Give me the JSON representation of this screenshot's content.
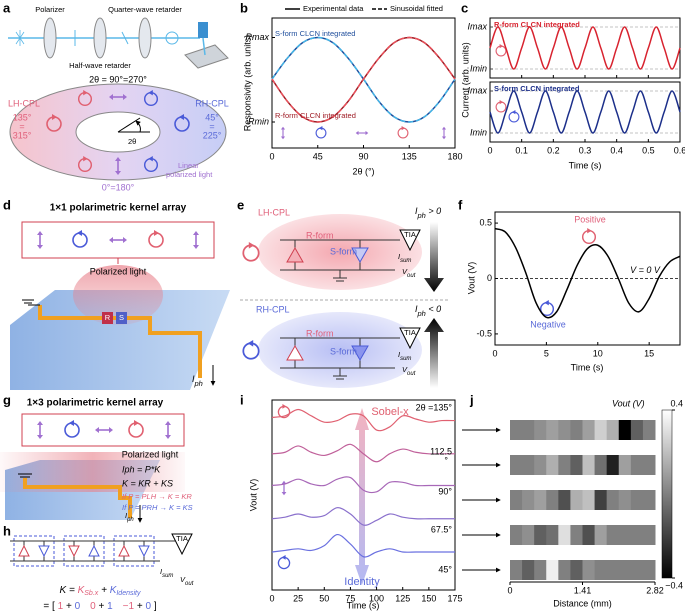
{
  "a": {
    "letter": "a",
    "polarizer": "Polarizer",
    "quarter_wave": "Quarter-wave retarder",
    "half_wave": "Half-wave retarder",
    "top_angle": "2θ = 90°=270°",
    "lh": "LH-CPL",
    "rh": "RH-CPL",
    "left_angles": [
      "135°",
      "=",
      "315°"
    ],
    "right_angles": [
      "45°",
      "=",
      "225°"
    ],
    "bottom_angle": "0°=180°",
    "linear": [
      "Linear",
      "polarized light"
    ],
    "two_theta": "2θ"
  },
  "b": {
    "type": "line",
    "letter": "b",
    "legend": [
      "Experimental data",
      "Sinusoidal fitted"
    ],
    "ylabel": "Responsivity (arb. units)",
    "xlabel": "2θ (°)",
    "x": [
      0,
      15,
      30,
      45,
      60,
      75,
      90,
      105,
      120,
      135,
      150,
      165,
      180
    ],
    "xlim": [
      0,
      180
    ],
    "xticks": [
      0,
      45,
      90,
      135,
      180
    ],
    "ylim": [
      0,
      1
    ],
    "yticks": [
      {
        "value": 0.85,
        "label": "Rmax"
      },
      {
        "value": 0.2,
        "label": "Rmin"
      }
    ],
    "series": [
      {
        "name": "S-form CLCN integrated",
        "color": "#1f4e9c",
        "fit_color": "#45b4e6",
        "values": [
          0.53,
          0.69,
          0.81,
          0.85,
          0.81,
          0.69,
          0.53,
          0.36,
          0.24,
          0.2,
          0.24,
          0.36,
          0.53
        ]
      },
      {
        "name": "R-form CLCN integrated",
        "color": "#9e1b24",
        "fit_color": "#e8505a",
        "values": [
          0.53,
          0.36,
          0.24,
          0.2,
          0.24,
          0.36,
          0.53,
          0.69,
          0.81,
          0.85,
          0.81,
          0.69,
          0.53
        ]
      }
    ]
  },
  "c": {
    "type": "line",
    "letter": "c",
    "ylabel": "Current (arb. units)",
    "xlabel": "Time (s)",
    "x": [
      0,
      0.025,
      0.05,
      0.075,
      0.1,
      0.125,
      0.15,
      0.175,
      0.2,
      0.225,
      0.25,
      0.275,
      0.3,
      0.325,
      0.35,
      0.375,
      0.4,
      0.425,
      0.45,
      0.475,
      0.5,
      0.525,
      0.55,
      0.575,
      0.6
    ],
    "xlim": [
      0,
      0.6
    ],
    "xticks": [
      0,
      0.1,
      0.2,
      0.3,
      0.4,
      0.5,
      0.6
    ],
    "subplots": [
      {
        "title": "R-form CLCN integrated",
        "color": "#d8232f",
        "ylim": [
          0,
          1
        ],
        "yticks": [
          {
            "value": 0.85,
            "label": "Imax"
          },
          {
            "value": 0.15,
            "label": "Imin"
          }
        ],
        "values": [
          0.5,
          0.85,
          0.5,
          0.15,
          0.5,
          0.85,
          0.5,
          0.15,
          0.5,
          0.85,
          0.5,
          0.15,
          0.5,
          0.85,
          0.5,
          0.15,
          0.5,
          0.85,
          0.5,
          0.15,
          0.5,
          0.85,
          0.5,
          0.15,
          0.5
        ]
      },
      {
        "title": "S-form CLCN integrated",
        "color": "#1c2f8a",
        "ylim": [
          0,
          1
        ],
        "yticks": [
          {
            "value": 0.85,
            "label": "Imax"
          },
          {
            "value": 0.15,
            "label": "Imin"
          }
        ],
        "values": [
          0.5,
          0.15,
          0.5,
          0.85,
          0.5,
          0.15,
          0.5,
          0.85,
          0.5,
          0.15,
          0.5,
          0.85,
          0.5,
          0.15,
          0.5,
          0.85,
          0.5,
          0.15,
          0.5,
          0.85,
          0.5,
          0.15,
          0.5,
          0.85,
          0.5
        ]
      }
    ]
  },
  "d": {
    "letter": "d",
    "title": "1×1 polarimetric kernel array",
    "polarized": "Polarized light",
    "r": "R",
    "s": "S",
    "iph": {
      "main": "I",
      "sub": "ph"
    }
  },
  "e": {
    "letter": "e",
    "top": {
      "label": "LH-CPL",
      "r": "R-form",
      "s": "S-form",
      "cond": {
        "main": "I",
        "sub": "ph",
        "rest": " > 0"
      },
      "tia": "TIA",
      "isum": {
        "main": "I",
        "sub": "sum"
      },
      "vout": {
        "main": "V",
        "sub": "out"
      }
    },
    "bottom": {
      "label": "RH-CPL",
      "r": "R-form",
      "s": "S-form",
      "cond": {
        "main": "I",
        "sub": "ph",
        "rest": " < 0"
      },
      "tia": "TIA",
      "isum": {
        "main": "I",
        "sub": "sum"
      },
      "vout": {
        "main": "V",
        "sub": "out"
      }
    }
  },
  "f": {
    "type": "line",
    "letter": "f",
    "ylabel": "Vout (V)",
    "xlabel": "Time (s)",
    "positive": "Positive",
    "negative": "Negative",
    "zero": "V = 0 V",
    "x": [
      0,
      1,
      2,
      3,
      4,
      5,
      6,
      7,
      8,
      9,
      10,
      11,
      12,
      13,
      14,
      15,
      16,
      17,
      18
    ],
    "values": [
      0.45,
      0.42,
      0.28,
      0.05,
      -0.22,
      -0.35,
      -0.3,
      -0.1,
      0.12,
      0.27,
      0.3,
      0.2,
      0,
      -0.22,
      -0.3,
      -0.18,
      0.02,
      0.15,
      0.2
    ],
    "xlim": [
      0,
      18
    ],
    "xticks": [
      0,
      5,
      10,
      15
    ],
    "ylim": [
      -0.6,
      0.6
    ],
    "yticks": [
      -0.5,
      0,
      0.5
    ],
    "color": "#000000"
  },
  "g": {
    "letter": "g",
    "title": "1×3 polarimetric kernel array",
    "polarized": "Polarized light",
    "eq1": "Iph = P*K",
    "eq2": "K = KR + KS",
    "eq3": "If P = PLH → K = KR",
    "eq4": "If P = PRH → K = KS",
    "cells": [
      "R",
      "S",
      "R",
      "S",
      "R",
      "S"
    ],
    "iph": {
      "main": "I",
      "sub": "ph"
    }
  },
  "h": {
    "letter": "h",
    "tia": "TIA",
    "isum": {
      "main": "I",
      "sub": "sum"
    },
    "vout": {
      "main": "V",
      "sub": "out"
    },
    "eq": [
      "K =",
      "K",
      "Sb.x",
      "+",
      "K",
      "Idensity"
    ],
    "vector": [
      "= [",
      "1",
      "+",
      "0",
      "0",
      "+",
      "1",
      "−1",
      "+",
      "0",
      "]"
    ]
  },
  "i": {
    "type": "line",
    "letter": "i",
    "ylabel": "Vout (V)",
    "xlabel": "Time (s)",
    "top_arrow": "Sobel-x",
    "bottom_arrow": "Identity",
    "degree_mark": "°",
    "x": [
      0,
      12.5,
      25,
      37.5,
      50,
      62.5,
      75,
      87.5,
      100,
      112.5,
      125,
      137.5,
      150,
      162.5,
      175
    ],
    "xlim": [
      0,
      175
    ],
    "xticks": [
      0,
      25,
      50,
      75,
      100,
      125,
      150,
      175
    ],
    "ylim": [
      0,
      6
    ],
    "series": [
      {
        "name": "2θ =135°",
        "color": "#e06070",
        "values": [
          5.45,
          5.5,
          5.7,
          5.5,
          5.3,
          5.35,
          5.55,
          5.5,
          5.05,
          5.15,
          5.5,
          5.4,
          5.3,
          5.35,
          5.35
        ]
      },
      {
        "name": "112.5",
        "color": "#c0609a",
        "values": [
          4.3,
          4.35,
          4.55,
          4.35,
          4.25,
          4.4,
          4.6,
          4.3,
          4.05,
          4.3,
          4.45,
          4.35,
          4.3,
          4.3,
          4.3
        ]
      },
      {
        "name": "90°",
        "color": "#a868b8",
        "values": [
          3.3,
          3.35,
          3.5,
          3.35,
          3.3,
          3.5,
          3.55,
          3.15,
          3.1,
          3.4,
          3.4,
          3.3,
          3.3,
          3.3,
          3.3
        ]
      },
      {
        "name": "67.5°",
        "color": "#8a70cc",
        "values": [
          2.25,
          2.3,
          2.4,
          2.3,
          2.35,
          2.6,
          2.4,
          2.05,
          2.2,
          2.4,
          2.3,
          2.25,
          2.25,
          2.25,
          2.25
        ]
      },
      {
        "name": "45°",
        "color": "#6a70e0",
        "values": [
          1.2,
          1.25,
          1.3,
          1.25,
          1.4,
          1.75,
          1.45,
          1.05,
          1.2,
          1.3,
          1.2,
          1.2,
          1.2,
          1.2,
          1.2
        ]
      }
    ]
  },
  "j": {
    "type": "heatmap",
    "letter": "j",
    "colorbar_label": "Vout (V)",
    "xlabel": "Distance (mm)",
    "xlim": [
      0,
      2.82
    ],
    "xticks": [
      0,
      1.41,
      2.82
    ],
    "clim": [
      -0.4,
      0.4
    ],
    "cticks": [
      0.4,
      {
        "value": -0.4,
        "label": "−0.4"
      }
    ],
    "strips": [
      [
        0,
        0,
        0.05,
        0.1,
        0.05,
        0,
        0.1,
        0.25,
        0.15,
        -0.4,
        -0.1,
        0
      ],
      [
        0,
        0,
        0.05,
        0.15,
        0,
        -0.1,
        0.2,
        -0.05,
        -0.3,
        0.1,
        0,
        0
      ],
      [
        0,
        0.05,
        0.1,
        0,
        -0.15,
        0.15,
        0.2,
        -0.2,
        0,
        0.05,
        0,
        0
      ],
      [
        0,
        0.05,
        -0.1,
        -0.05,
        0.3,
        0,
        -0.15,
        0.1,
        0,
        0,
        0,
        0
      ],
      [
        0,
        -0.1,
        0,
        0.35,
        0,
        -0.1,
        0.05,
        0,
        0,
        0,
        0,
        0
      ]
    ]
  }
}
